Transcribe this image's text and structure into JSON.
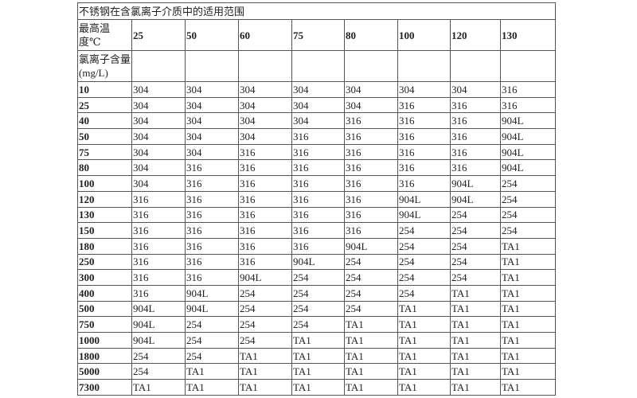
{
  "title": "不锈钢在含氯离子介质中的适用范围",
  "temp_label": "最高温度℃",
  "chloride_label": "氯离子含量(mg/L)",
  "temperatures": [
    "25",
    "50",
    "60",
    "75",
    "80",
    "100",
    "120",
    "130"
  ],
  "rows": [
    {
      "cl": "10",
      "v": [
        "304",
        "304",
        "304",
        "304",
        "304",
        "304",
        "304",
        "316"
      ]
    },
    {
      "cl": "25",
      "v": [
        "304",
        "304",
        "304",
        "304",
        "304",
        "316",
        "316",
        "316"
      ]
    },
    {
      "cl": "40",
      "v": [
        "304",
        "304",
        "304",
        "304",
        "316",
        "316",
        "316",
        "904L"
      ]
    },
    {
      "cl": "50",
      "v": [
        "304",
        "304",
        "304",
        "316",
        "316",
        "316",
        "316",
        "904L"
      ]
    },
    {
      "cl": "75",
      "v": [
        "304",
        "304",
        "316",
        "316",
        "316",
        "316",
        "316",
        "904L"
      ]
    },
    {
      "cl": "80",
      "v": [
        "304",
        "316",
        "316",
        "316",
        "316",
        "316",
        "316",
        "904L"
      ]
    },
    {
      "cl": "100",
      "v": [
        "304",
        "316",
        "316",
        "316",
        "316",
        "316",
        "904L",
        "254"
      ]
    },
    {
      "cl": "120",
      "v": [
        "316",
        "316",
        "316",
        "316",
        "316",
        "904L",
        "904L",
        "254"
      ]
    },
    {
      "cl": "130",
      "v": [
        "316",
        "316",
        "316",
        "316",
        "316",
        "904L",
        "254",
        "254"
      ]
    },
    {
      "cl": "150",
      "v": [
        "316",
        "316",
        "316",
        "316",
        "316",
        "254",
        "254",
        "254"
      ]
    },
    {
      "cl": "180",
      "v": [
        "316",
        "316",
        "316",
        "316",
        "904L",
        "254",
        "254",
        "TA1"
      ]
    },
    {
      "cl": "250",
      "v": [
        "316",
        "316",
        "316",
        "904L",
        "254",
        "254",
        "254",
        "TA1"
      ]
    },
    {
      "cl": "300",
      "v": [
        "316",
        "316",
        "904L",
        "254",
        "254",
        "254",
        "254",
        "TA1"
      ]
    },
    {
      "cl": "400",
      "v": [
        "316",
        "904L",
        "254",
        "254",
        "254",
        "254",
        "TA1",
        "TA1"
      ]
    },
    {
      "cl": "500",
      "v": [
        "904L",
        "904L",
        "254",
        "254",
        "254",
        "TA1",
        "TA1",
        "TA1"
      ]
    },
    {
      "cl": "750",
      "v": [
        "904L",
        "254",
        "254",
        "254",
        "TA1",
        "TA1",
        "TA1",
        "TA1"
      ]
    },
    {
      "cl": "1000",
      "v": [
        "904L",
        "254",
        "254",
        "TA1",
        "TA1",
        "TA1",
        "TA1",
        "TA1"
      ]
    },
    {
      "cl": "1800",
      "v": [
        "254",
        "254",
        "TA1",
        "TA1",
        "TA1",
        "TA1",
        "TA1",
        "TA1"
      ]
    },
    {
      "cl": "5000",
      "v": [
        "254",
        "TA1",
        "TA1",
        "TA1",
        "TA1",
        "TA1",
        "TA1",
        "TA1"
      ]
    },
    {
      "cl": "7300",
      "v": [
        "TA1",
        "TA1",
        "TA1",
        "TA1",
        "TA1",
        "TA1",
        "TA1",
        "TA1"
      ]
    }
  ]
}
